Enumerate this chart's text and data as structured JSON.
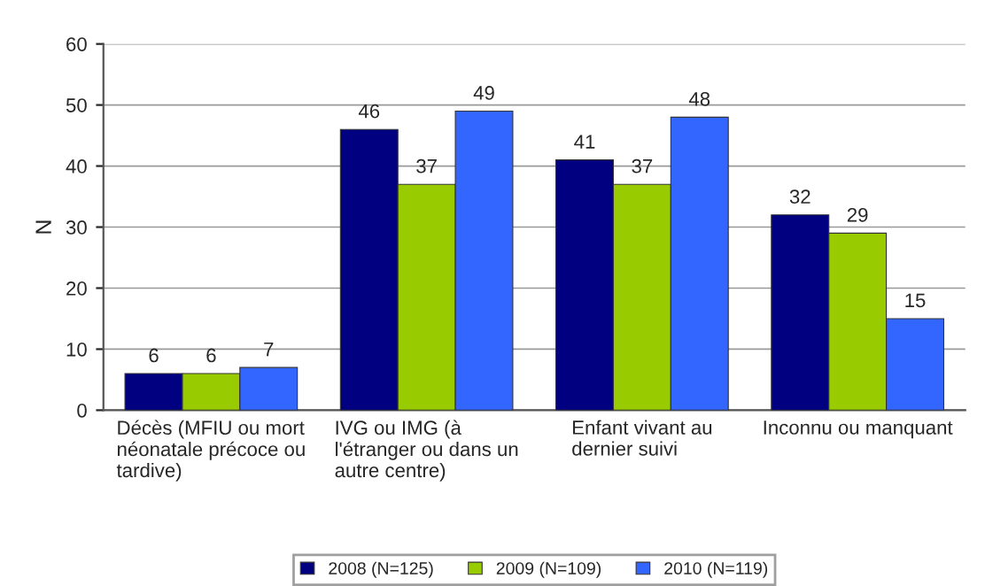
{
  "chart_data": {
    "type": "bar",
    "ylabel": "N",
    "categories": [
      "Décès (MFIU ou mort\nnéonatale précoce ou\ntardive)",
      "IVG ou IMG (à\nl'étranger ou dans un\nautre centre)",
      "Enfant vivant au\ndernier suivi",
      "Inconnu ou manquant"
    ],
    "series": [
      {
        "name": "2008 (N=125)",
        "color": "#000080",
        "values": [
          6,
          46,
          41,
          32
        ]
      },
      {
        "name": "2009 (N=109)",
        "color": "#99cc00",
        "values": [
          6,
          37,
          37,
          29
        ]
      },
      {
        "name": "2010 (N=119)",
        "color": "#3366ff",
        "values": [
          7,
          49,
          48,
          15
        ]
      }
    ],
    "ylim": [
      0,
      60
    ],
    "yticks": [
      0,
      10,
      20,
      30,
      40,
      50,
      60
    ],
    "grid": "y",
    "legend": "bottom",
    "data_labels": true
  }
}
